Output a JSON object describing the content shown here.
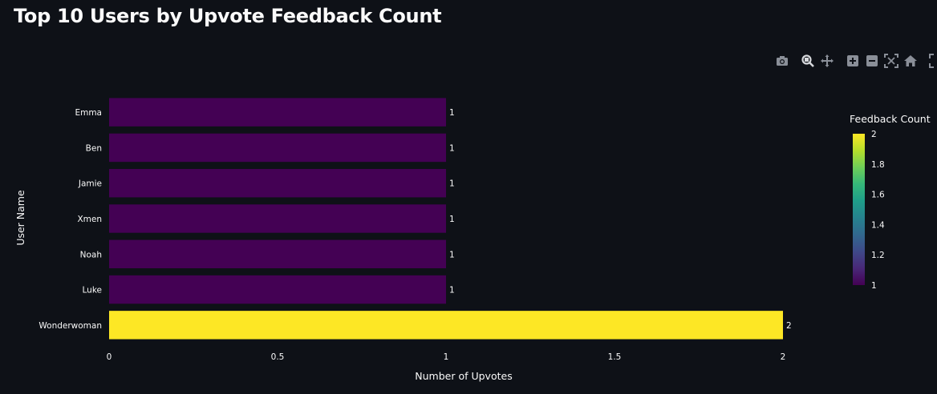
{
  "page": {
    "title": "Top 10 Users by Upvote Feedback Count"
  },
  "modebar": {
    "buttons": [
      {
        "name": "camera-icon",
        "title": "Download plot as a png"
      },
      {
        "name": "zoom-icon",
        "title": "Zoom"
      },
      {
        "name": "pan-icon",
        "title": "Pan"
      },
      {
        "name": "zoom-in-icon",
        "title": "Zoom in"
      },
      {
        "name": "zoom-out-icon",
        "title": "Zoom out"
      },
      {
        "name": "autoscale-icon",
        "title": "Autoscale"
      },
      {
        "name": "home-icon",
        "title": "Reset axes"
      },
      {
        "name": "fullscreen-icon",
        "title": "Fullscreen"
      }
    ]
  },
  "chart_data": {
    "type": "bar",
    "orientation": "horizontal",
    "title": "Top 10 Users by Upvote Feedback Count",
    "xlabel": "Number of Upvotes",
    "ylabel": "User Name",
    "categories": [
      "Emma",
      "Ben",
      "Jamie",
      "Xmen",
      "Noah",
      "Luke",
      "Wonderwoman"
    ],
    "values": [
      1,
      1,
      1,
      1,
      1,
      1,
      2
    ],
    "data_labels": [
      "1",
      "1",
      "1",
      "1",
      "1",
      "1",
      "2"
    ],
    "xlim": [
      0,
      2
    ],
    "xticks": [
      0,
      0.5,
      1,
      1.5,
      2
    ],
    "xtick_labels": [
      "0",
      "0.5",
      "1",
      "1.5",
      "2"
    ],
    "grid": false,
    "colorscale": "viridis",
    "colorbar": {
      "title": "Feedback Count",
      "range": [
        1,
        2
      ],
      "ticks": [
        1,
        1.2,
        1.4,
        1.6,
        1.8,
        2
      ],
      "tick_labels": [
        "1",
        "1.2",
        "1.4",
        "1.6",
        "1.8",
        "2"
      ],
      "placement": "right"
    },
    "colors": {
      "background": "#0e1117",
      "text": "#fafafa",
      "min_color": "#440154",
      "max_color": "#fde725"
    }
  }
}
